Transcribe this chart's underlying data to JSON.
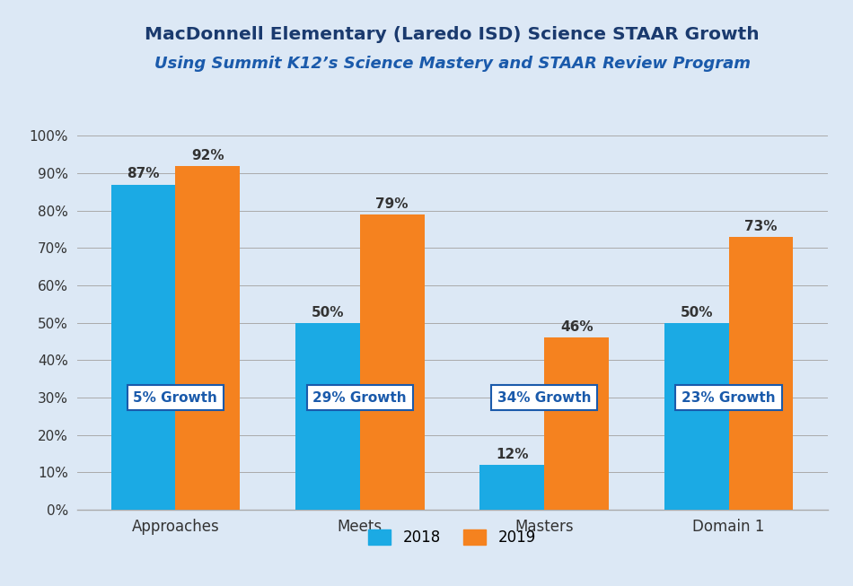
{
  "title_line1": "MacDonnell Elementary (Laredo ISD) Science STAAR Growth",
  "title_line2": "Using Summit K12’s Science Mastery and STAAR Review Program",
  "categories": [
    "Approaches",
    "Meets",
    "Masters",
    "Domain 1"
  ],
  "values_2018": [
    87,
    50,
    12,
    50
  ],
  "values_2019": [
    92,
    79,
    46,
    73
  ],
  "growth_labels": [
    "5% Growth",
    "29% Growth",
    "34% Growth",
    "23% Growth"
  ],
  "color_2018": "#1BAAE4",
  "color_2019": "#F5821F",
  "background_color": "#dce8f5",
  "title_color_line1": "#1a3a6e",
  "title_color_line2": "#1a5aab",
  "ylabel_ticks": [
    "0%",
    "10%",
    "20%",
    "30%",
    "40%",
    "50%",
    "60%",
    "70%",
    "80%",
    "90%",
    "100%"
  ],
  "ylim": [
    0,
    105
  ],
  "bar_value_color": "#333333",
  "growth_box_edge_color": "#1a5aab",
  "growth_text_color": "#1a5aab",
  "legend_labels": [
    "2018",
    "2019"
  ],
  "bar_width": 0.35,
  "grid_color": "#aaaaaa"
}
